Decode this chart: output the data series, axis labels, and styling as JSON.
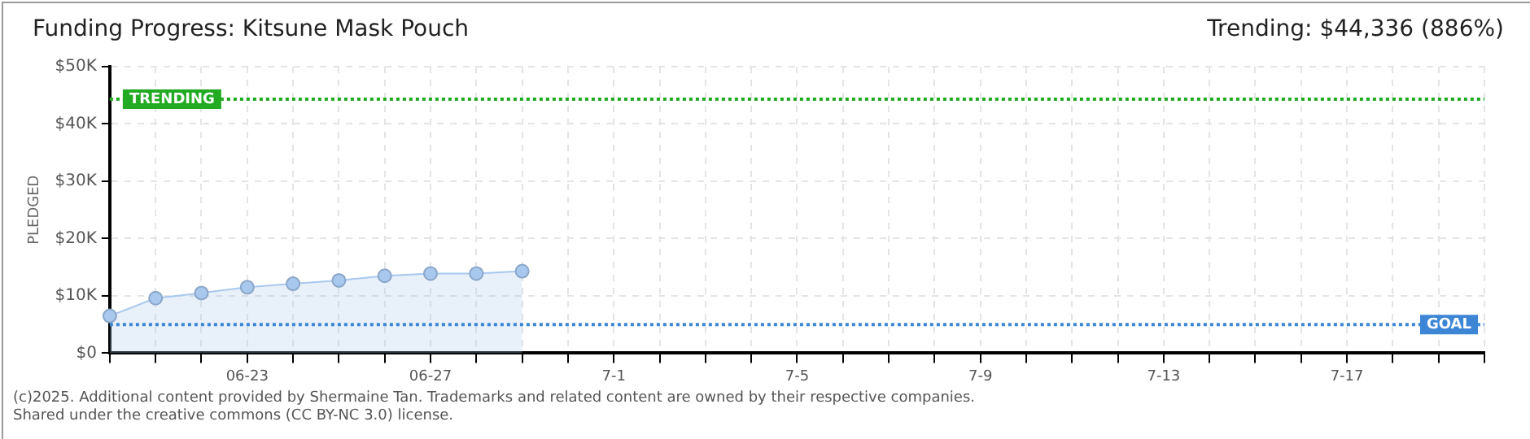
{
  "chart_data": {
    "type": "area",
    "title": "Funding Progress: Kitsune Mask Pouch",
    "subtitle": "Trending: $44,336 (886%)",
    "ylabel": "PLEDGED",
    "categories": [
      null,
      null,
      null,
      "06-23",
      null,
      null,
      null,
      "06-27",
      null,
      null,
      null,
      "7-1",
      null,
      null,
      null,
      "7-5",
      null,
      null,
      null,
      "7-9",
      null,
      null,
      null,
      "7-13",
      null,
      null,
      null,
      "7-17",
      null,
      null,
      null
    ],
    "series": [
      {
        "color": "#a9c8ee",
        "values": [
          6500,
          9600,
          10500,
          11500,
          12100,
          12700,
          13500,
          13900,
          13900,
          14300,
          null,
          null,
          null,
          null,
          null,
          null,
          null,
          null,
          null,
          null,
          null,
          null,
          null,
          null,
          null,
          null,
          null,
          null,
          null,
          null,
          null
        ]
      }
    ],
    "ylim": [
      0,
      50000
    ],
    "yticks": [
      {
        "value": 0,
        "label": "$0"
      },
      {
        "value": 10000,
        "label": "$10K"
      },
      {
        "value": 20000,
        "label": "$20K"
      },
      {
        "value": 30000,
        "label": "$30K"
      },
      {
        "value": 40000,
        "label": "$40K"
      },
      {
        "value": 50000,
        "label": "$50K"
      }
    ],
    "ref_lines": [
      {
        "axis": "y",
        "value": 44336,
        "label": "TRENDING",
        "color": "#22aa22",
        "line_style": "dotted"
      },
      {
        "axis": "y",
        "value": 5000,
        "label": "GOAL",
        "color": "#3d86d6",
        "line_style": "dotted"
      }
    ],
    "grid": true,
    "marker": "circle",
    "annotations": [
      "(c)2025. Additional content provided by Shermaine Tan. Trademarks and related content are owned by their respective companies.",
      "Shared under the creative commons (CC BY-NC 3.0) license."
    ]
  }
}
